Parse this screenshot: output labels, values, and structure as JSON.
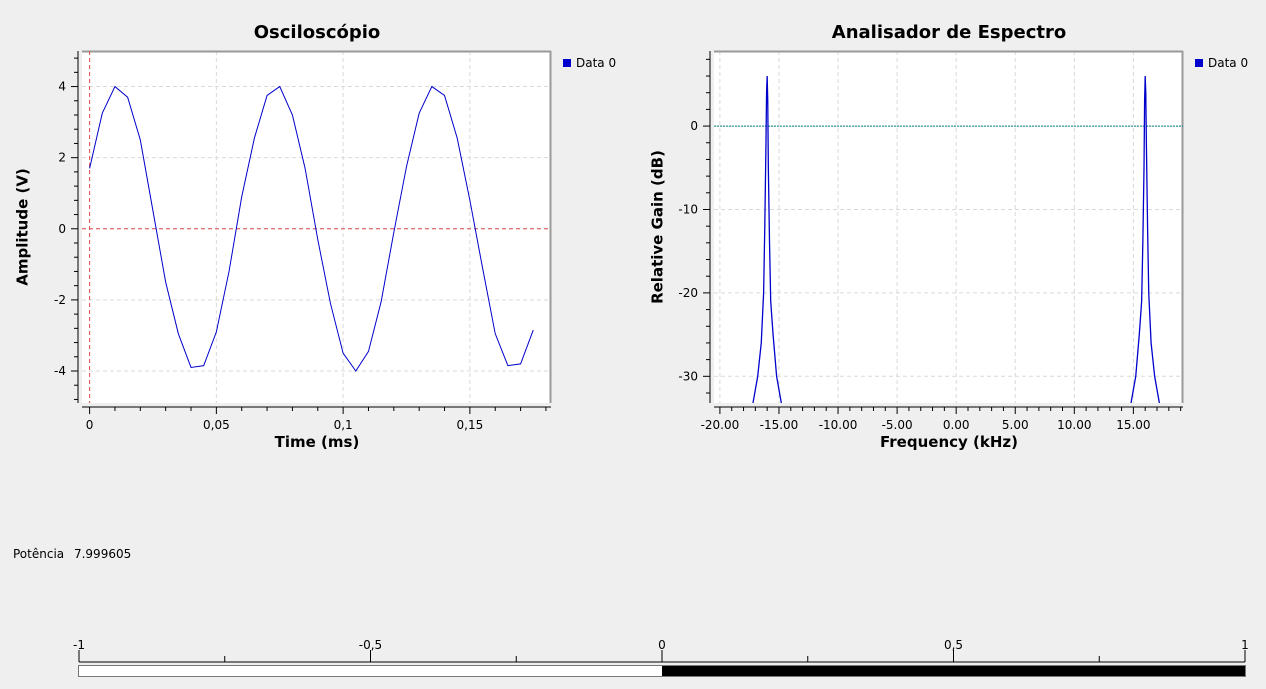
{
  "colors": {
    "series": "#0000cc",
    "marker": "#e05050",
    "baseline": "#008080",
    "grid": "#d9d9d9"
  },
  "oscilloscope": {
    "title": "Osciloscópio",
    "legend": "Data 0"
  },
  "spectrum": {
    "title": "Analisador de Espectro",
    "legend": "Data 0"
  },
  "power": {
    "label": "Potência",
    "value": "7.999605"
  },
  "level_bar": {
    "ticks": [
      "-1",
      "-0,5",
      "0",
      "0,5",
      "1"
    ],
    "range": [
      -1,
      1
    ],
    "fill_from": 0,
    "fill_to": 1
  },
  "chart_data": [
    {
      "type": "line",
      "title": "Osciloscópio",
      "xlabel": "Time (ms)",
      "ylabel": "Amplitude (V)",
      "xlim": [
        -0.003,
        0.182
      ],
      "ylim": [
        -4.9,
        5.0
      ],
      "xticks": [
        0,
        0.05,
        0.1,
        0.15
      ],
      "xtick_labels": [
        "0",
        "0,05",
        "0,1",
        "0,15"
      ],
      "yticks": [
        -4,
        -2,
        0,
        2,
        4
      ],
      "ytick_labels": [
        "-4",
        "-2",
        "0",
        "2",
        "4"
      ],
      "marker_x": 0,
      "marker_y": 0,
      "grid": true,
      "legend_position": "top-right",
      "series": [
        {
          "name": "Data 0",
          "x": [
            0,
            0.005,
            0.01,
            0.015,
            0.02,
            0.025,
            0.03,
            0.035,
            0.04,
            0.045,
            0.05,
            0.055,
            0.06,
            0.065,
            0.07,
            0.075,
            0.08,
            0.085,
            0.09,
            0.095,
            0.1,
            0.105,
            0.11,
            0.115,
            0.12,
            0.125,
            0.13,
            0.135,
            0.14,
            0.145,
            0.15,
            0.155,
            0.16,
            0.165,
            0.17,
            0.175
          ],
          "y": [
            1.7,
            3.25,
            4.0,
            3.7,
            2.5,
            0.5,
            -1.5,
            -2.95,
            -3.9,
            -3.85,
            -2.9,
            -1.2,
            0.9,
            2.55,
            3.75,
            4.0,
            3.2,
            1.7,
            -0.3,
            -2.1,
            -3.5,
            -4.0,
            -3.45,
            -2.05,
            -0.1,
            1.75,
            3.25,
            4.0,
            3.75,
            2.55,
            0.8,
            -1.1,
            -2.95,
            -3.85,
            -3.8,
            -2.85
          ]
        }
      ]
    },
    {
      "type": "line",
      "title": "Analisador de Espectro",
      "xlabel": "Frequency (kHz)",
      "ylabel": "Relative Gain (dB)",
      "xlim": [
        -20.5,
        19.2
      ],
      "ylim": [
        -33.2,
        9.0
      ],
      "xticks": [
        -20,
        -15,
        -10,
        -5,
        0,
        5,
        10,
        15
      ],
      "xtick_labels": [
        "-20.00",
        "-15.00",
        "-10.00",
        "-5.00",
        "0.00",
        "5.00",
        "10.00",
        "15.00"
      ],
      "yticks": [
        -30,
        -20,
        -10,
        0
      ],
      "ytick_labels": [
        "-30",
        "-20",
        "-10",
        "0"
      ],
      "baseline_y": 0,
      "grid": true,
      "legend_position": "top-right",
      "series": [
        {
          "name": "Data 0",
          "x": [
            -17.2,
            -16.8,
            -16.5,
            -16.3,
            -16.2,
            -16.1,
            -16.05,
            -16.0,
            -15.95,
            -15.9,
            -15.8,
            -15.7,
            -15.5,
            -15.2,
            -14.8,
            14.8,
            15.2,
            15.5,
            15.7,
            15.8,
            15.9,
            15.95,
            16.0,
            16.05,
            16.1,
            16.2,
            16.3,
            16.5,
            16.8,
            17.2
          ],
          "y": [
            -33.2,
            -30,
            -26,
            -20,
            -12,
            -2,
            4,
            6,
            3,
            -5,
            -14,
            -21,
            -25,
            -30,
            -33.2,
            -33.2,
            -30,
            -25,
            -21,
            -14,
            -5,
            3,
            6,
            4,
            -2,
            -12,
            -20,
            -26,
            -30,
            -33.2
          ]
        }
      ]
    }
  ]
}
